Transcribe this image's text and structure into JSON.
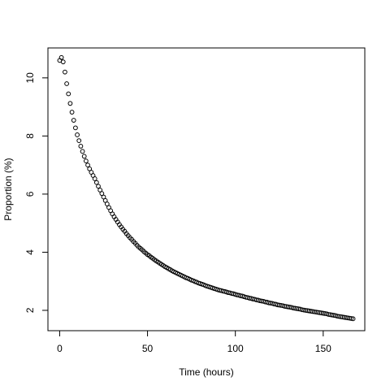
{
  "chart_data": {
    "type": "scatter",
    "x_label": "Time (hours)",
    "y_label": "Proportion (%)",
    "x": [
      0,
      1,
      2,
      3,
      4,
      5,
      6,
      7,
      8,
      9,
      10,
      11,
      12,
      13,
      14,
      15,
      16,
      17,
      18,
      19,
      20,
      21,
      22,
      23,
      24,
      25,
      26,
      27,
      28,
      29,
      30,
      31,
      32,
      33,
      34,
      35,
      36,
      37,
      38,
      39,
      40,
      41,
      42,
      43,
      44,
      45,
      46,
      47,
      48,
      49,
      50,
      51,
      52,
      53,
      54,
      55,
      56,
      57,
      58,
      59,
      60,
      61,
      62,
      63,
      64,
      65,
      66,
      67,
      68,
      69,
      70,
      71,
      72,
      73,
      74,
      75,
      76,
      77,
      78,
      79,
      80,
      81,
      82,
      83,
      84,
      85,
      86,
      87,
      88,
      89,
      90,
      91,
      92,
      93,
      94,
      95,
      96,
      97,
      98,
      99,
      100,
      101,
      102,
      103,
      104,
      105,
      106,
      107,
      108,
      109,
      110,
      111,
      112,
      113,
      114,
      115,
      116,
      117,
      118,
      119,
      120,
      121,
      122,
      123,
      124,
      125,
      126,
      127,
      128,
      129,
      130,
      131,
      132,
      133,
      134,
      135,
      136,
      137,
      138,
      139,
      140,
      141,
      142,
      143,
      144,
      145,
      146,
      147,
      148,
      149,
      150,
      151,
      152,
      153,
      154,
      155,
      156,
      157,
      158,
      159,
      160,
      161,
      162,
      163,
      164,
      165,
      166,
      167
    ],
    "values": [
      10.6,
      10.7,
      10.55,
      10.2,
      9.8,
      9.45,
      9.12,
      8.82,
      8.54,
      8.28,
      8.04,
      7.84,
      7.65,
      7.47,
      7.3,
      7.14,
      7.0,
      6.87,
      6.75,
      6.64,
      6.53,
      6.4,
      6.27,
      6.14,
      6.02,
      5.9,
      5.78,
      5.66,
      5.54,
      5.43,
      5.32,
      5.22,
      5.13,
      5.04,
      4.95,
      4.87,
      4.79,
      4.72,
      4.64,
      4.57,
      4.5,
      4.44,
      4.37,
      4.31,
      4.24,
      4.18,
      4.13,
      4.08,
      4.02,
      3.97,
      3.92,
      3.88,
      3.83,
      3.79,
      3.74,
      3.7,
      3.66,
      3.62,
      3.58,
      3.54,
      3.5,
      3.47,
      3.43,
      3.4,
      3.36,
      3.33,
      3.3,
      3.27,
      3.24,
      3.21,
      3.18,
      3.15,
      3.12,
      3.1,
      3.07,
      3.04,
      3.02,
      2.99,
      2.97,
      2.94,
      2.92,
      2.9,
      2.88,
      2.85,
      2.83,
      2.81,
      2.79,
      2.77,
      2.75,
      2.73,
      2.71,
      2.69,
      2.68,
      2.66,
      2.65,
      2.63,
      2.61,
      2.6,
      2.58,
      2.57,
      2.55,
      2.53,
      2.52,
      2.5,
      2.49,
      2.47,
      2.45,
      2.44,
      2.42,
      2.41,
      2.39,
      2.38,
      2.36,
      2.35,
      2.33,
      2.32,
      2.31,
      2.29,
      2.28,
      2.26,
      2.25,
      2.24,
      2.22,
      2.21,
      2.19,
      2.18,
      2.17,
      2.16,
      2.14,
      2.13,
      2.12,
      2.11,
      2.1,
      2.08,
      2.07,
      2.06,
      2.05,
      2.04,
      2.02,
      2.01,
      2.0,
      1.99,
      1.98,
      1.97,
      1.96,
      1.95,
      1.94,
      1.93,
      1.92,
      1.91,
      1.9,
      1.89,
      1.88,
      1.86,
      1.85,
      1.84,
      1.83,
      1.82,
      1.8,
      1.79,
      1.78,
      1.77,
      1.76,
      1.75,
      1.74,
      1.73,
      1.72,
      1.71
    ],
    "color": "#000000",
    "xlim": [
      -6.68,
      173.68
    ],
    "xticks": [
      0,
      50,
      100,
      150
    ],
    "ylim": [
      1.3,
      11.03
    ],
    "yticks": [
      2,
      4,
      6,
      8,
      10
    ]
  }
}
